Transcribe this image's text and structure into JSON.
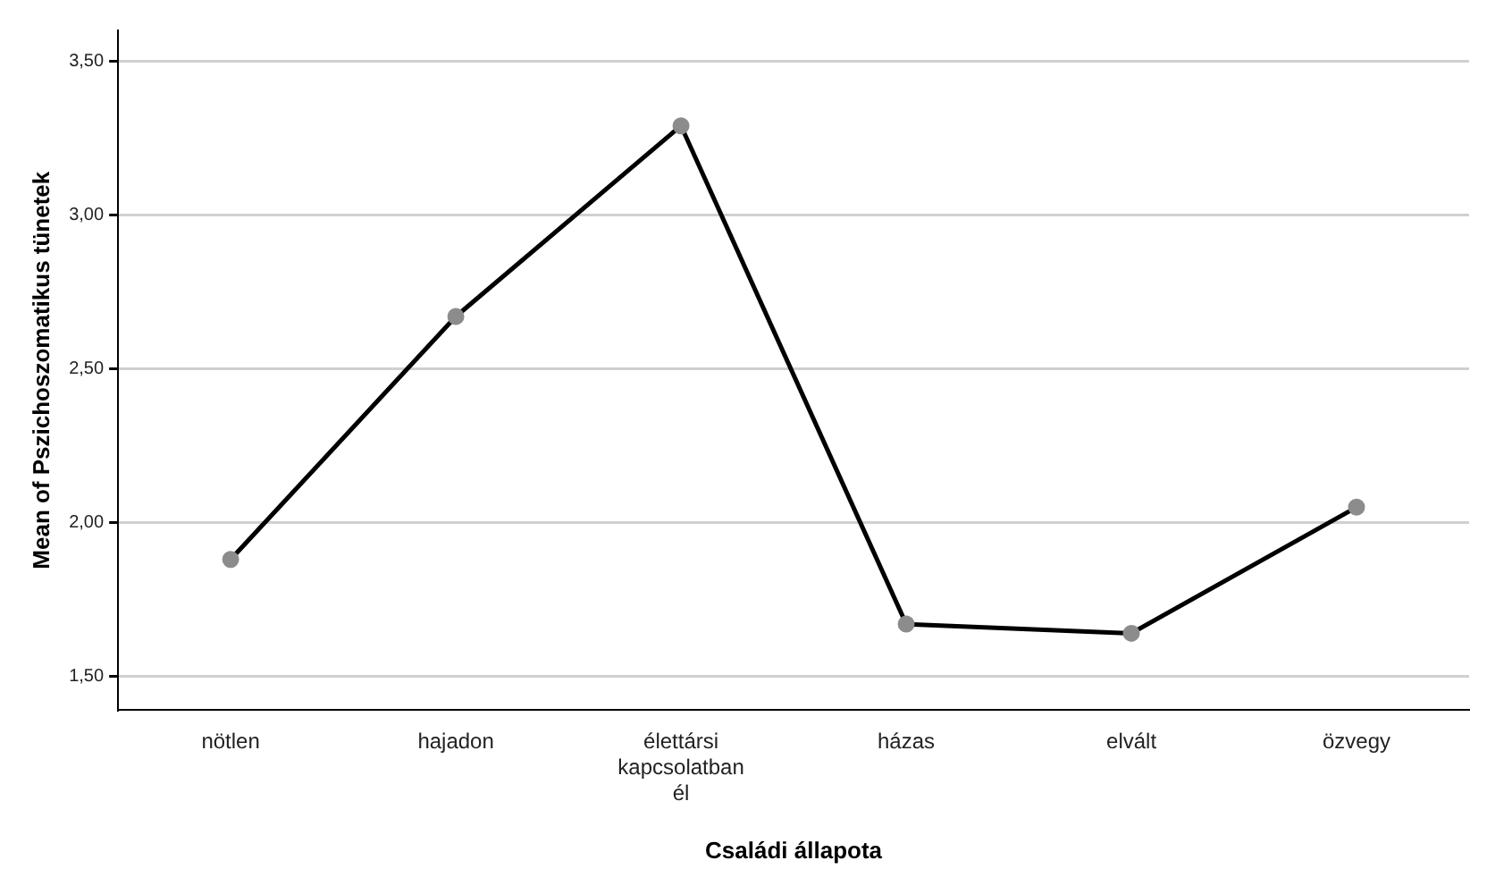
{
  "chart_data": {
    "type": "line",
    "xlabel": "Családi állapota",
    "ylabel": "Mean of Pszichoszomatikus tünetek",
    "categories": [
      "nötlen",
      "hajadon",
      "élettársi kapcsolatban él",
      "házas",
      "elvált",
      "özvegy"
    ],
    "series": [
      {
        "color": "#000000",
        "values": [
          1.88,
          2.67,
          3.29,
          1.67,
          1.64,
          2.05
        ]
      }
    ],
    "ylim": [
      1.39,
      3.6
    ],
    "yticks": [
      {
        "value": 1.5,
        "label": "1,50"
      },
      {
        "value": 2,
        "label": "2,00"
      },
      {
        "value": 2.5,
        "label": "2,50"
      },
      {
        "value": 3,
        "label": "3,00"
      },
      {
        "value": 3.5,
        "label": "3,50"
      }
    ],
    "grid": "y",
    "legend": false,
    "marker": "circle",
    "line_style": "solid"
  }
}
